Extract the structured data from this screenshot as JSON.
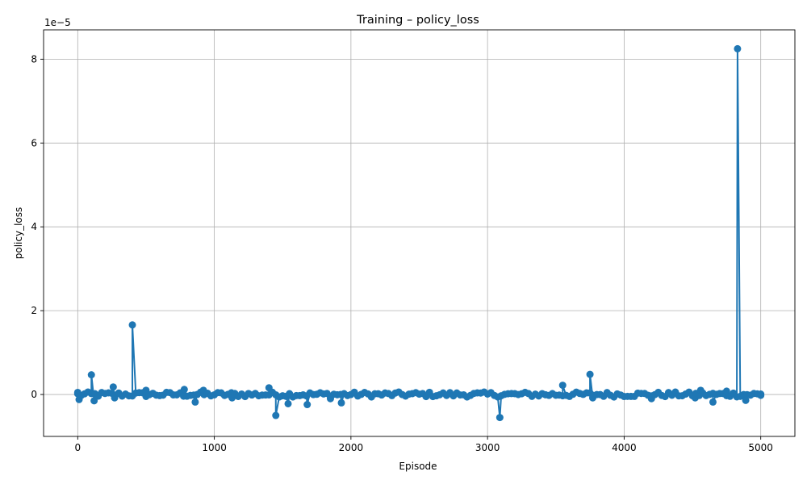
{
  "chart_data": {
    "type": "line",
    "title": "Training – policy_loss",
    "xlabel": "Episode",
    "ylabel": "policy_loss",
    "y_offset_label": "1e−5",
    "y_scale_exponent": -5,
    "xlim": [
      -250,
      5250
    ],
    "ylim": [
      -1.0,
      8.7
    ],
    "x_ticks": [
      0,
      1000,
      2000,
      3000,
      4000,
      5000
    ],
    "x_tick_labels": [
      "0",
      "1000",
      "2000",
      "3000",
      "4000",
      "5000"
    ],
    "y_ticks": [
      0,
      2,
      4,
      6,
      8
    ],
    "y_tick_labels": [
      "0",
      "2",
      "4",
      "6",
      "8"
    ],
    "grid": true,
    "series": [
      {
        "color": "#1f77b4",
        "marker": "circle",
        "baseline_points": 200,
        "baseline_amplitude": 0.06,
        "spikes": [
          {
            "x": 0,
            "y": 0.05
          },
          {
            "x": 10,
            "y": -0.12
          },
          {
            "x": 100,
            "y": 0.47
          },
          {
            "x": 120,
            "y": -0.15
          },
          {
            "x": 260,
            "y": 0.18
          },
          {
            "x": 270,
            "y": -0.08
          },
          {
            "x": 400,
            "y": 1.66
          },
          {
            "x": 500,
            "y": 0.1
          },
          {
            "x": 780,
            "y": 0.12
          },
          {
            "x": 860,
            "y": -0.18
          },
          {
            "x": 920,
            "y": 0.1
          },
          {
            "x": 1130,
            "y": -0.08
          },
          {
            "x": 1400,
            "y": 0.16
          },
          {
            "x": 1450,
            "y": -0.5
          },
          {
            "x": 1540,
            "y": -0.22
          },
          {
            "x": 1680,
            "y": -0.24
          },
          {
            "x": 1850,
            "y": -0.1
          },
          {
            "x": 1930,
            "y": -0.2
          },
          {
            "x": 3090,
            "y": -0.55
          },
          {
            "x": 3550,
            "y": 0.22
          },
          {
            "x": 3750,
            "y": 0.48
          },
          {
            "x": 3770,
            "y": -0.08
          },
          {
            "x": 4200,
            "y": -0.1
          },
          {
            "x": 4520,
            "y": -0.08
          },
          {
            "x": 4560,
            "y": 0.1
          },
          {
            "x": 4650,
            "y": -0.18
          },
          {
            "x": 4750,
            "y": 0.08
          },
          {
            "x": 4830,
            "y": 8.25
          },
          {
            "x": 4890,
            "y": -0.14
          },
          {
            "x": 5000,
            "y": -0.02
          }
        ]
      }
    ]
  }
}
